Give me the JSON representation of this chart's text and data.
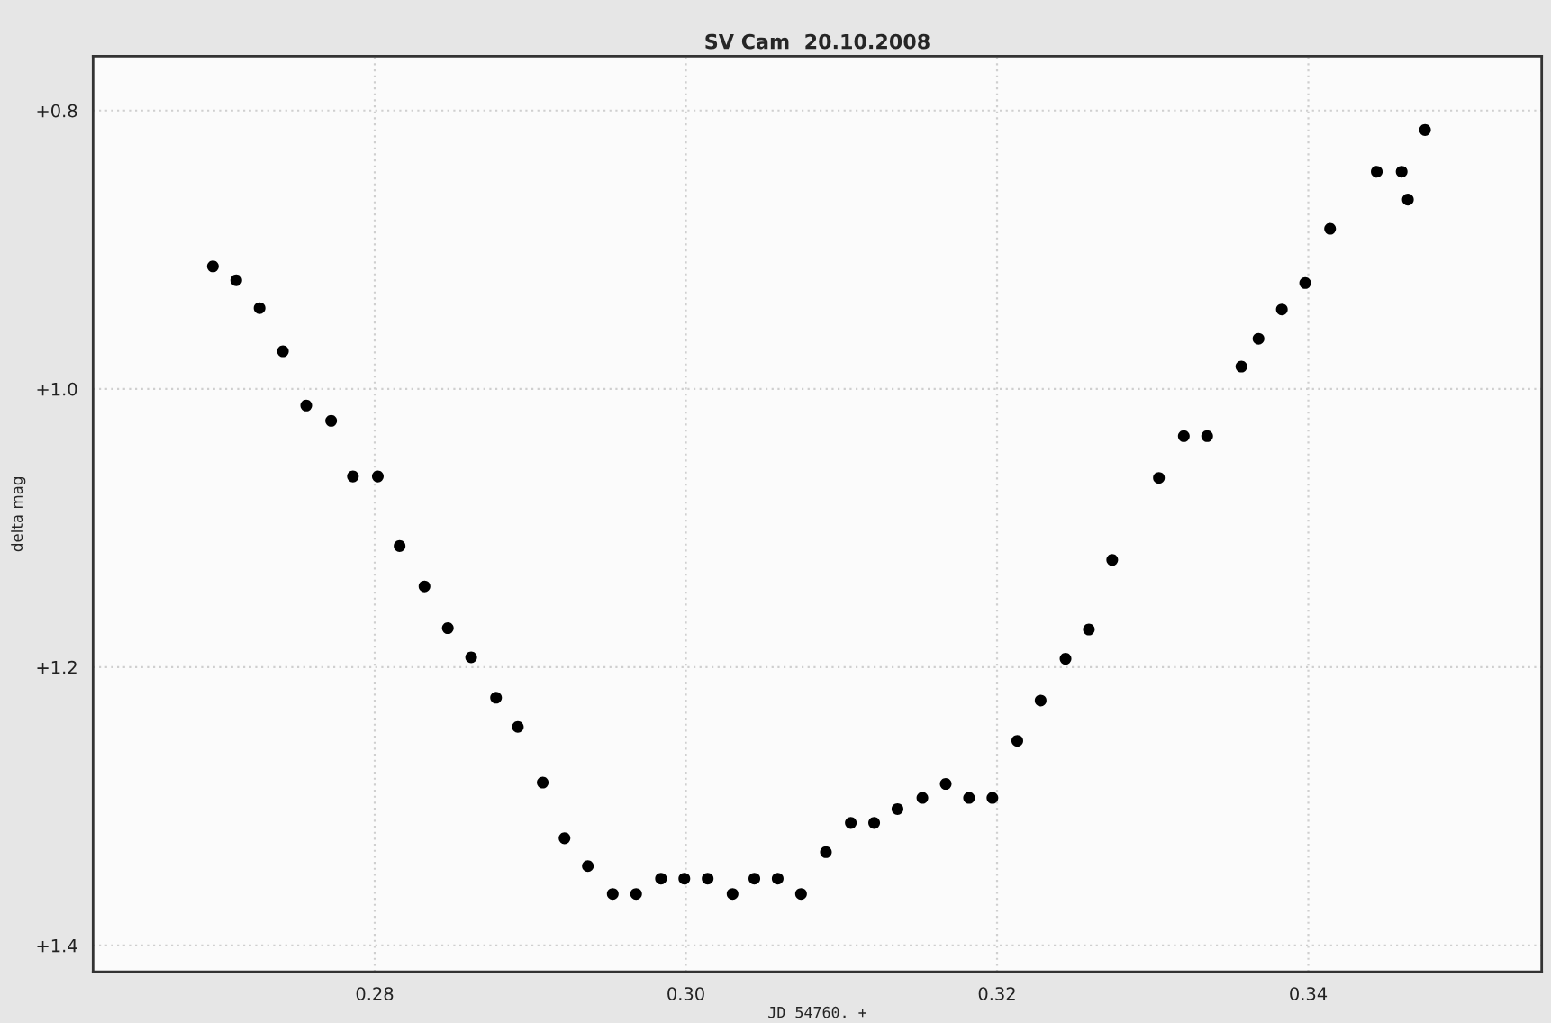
{
  "chart_data": {
    "type": "scatter",
    "title": "SV Cam  20.10.2008",
    "xlabel": "JD 54760. +",
    "ylabel": "delta mag",
    "xlim": [
      0.2619,
      0.355
    ],
    "ylim": [
      1.419,
      0.761
    ],
    "xticks": [
      0.28,
      {
        "value": 0.3,
        "label": "0.30"
      },
      0.32,
      0.34
    ],
    "yticks": [
      {
        "value": 0.8,
        "label": "+0.8"
      },
      {
        "value": 1.0,
        "label": "+1.0"
      },
      {
        "value": 1.2,
        "label": "+1.2"
      },
      {
        "value": 1.4,
        "label": "+1.4"
      }
    ],
    "grid": true,
    "marker": "circle",
    "series": [
      {
        "color": "#000000",
        "x": [
          0.2696,
          0.2711,
          0.2726,
          0.2741,
          0.2756,
          0.2772,
          0.2786,
          0.2802,
          0.2816,
          0.2832,
          0.2847,
          0.2862,
          0.2878,
          0.2892,
          0.2908,
          0.2922,
          0.2937,
          0.2953,
          0.2968,
          0.2984,
          0.2999,
          0.3014,
          0.303,
          0.3044,
          0.3059,
          0.3074,
          0.309,
          0.3106,
          0.3121,
          0.3136,
          0.3152,
          0.3167,
          0.3182,
          0.3197,
          0.3213,
          0.3228,
          0.3244,
          0.3259,
          0.3274,
          0.3304,
          0.332,
          0.3335,
          0.3357,
          0.3368,
          0.3383,
          0.3398,
          0.3414,
          0.3444,
          0.346,
          0.3464,
          0.3475
        ],
        "values": [
          0.912,
          0.922,
          0.942,
          0.973,
          1.012,
          1.023,
          1.063,
          1.063,
          1.113,
          1.142,
          1.172,
          1.193,
          1.222,
          1.243,
          1.283,
          1.323,
          1.343,
          1.363,
          1.363,
          1.352,
          1.352,
          1.352,
          1.363,
          1.352,
          1.352,
          1.363,
          1.333,
          1.312,
          1.312,
          1.302,
          1.294,
          1.284,
          1.294,
          1.294,
          1.253,
          1.224,
          1.194,
          1.173,
          1.123,
          1.064,
          1.034,
          1.034,
          0.984,
          0.964,
          0.943,
          0.924,
          0.885,
          0.844,
          0.844,
          0.864,
          0.814
        ]
      }
    ]
  }
}
